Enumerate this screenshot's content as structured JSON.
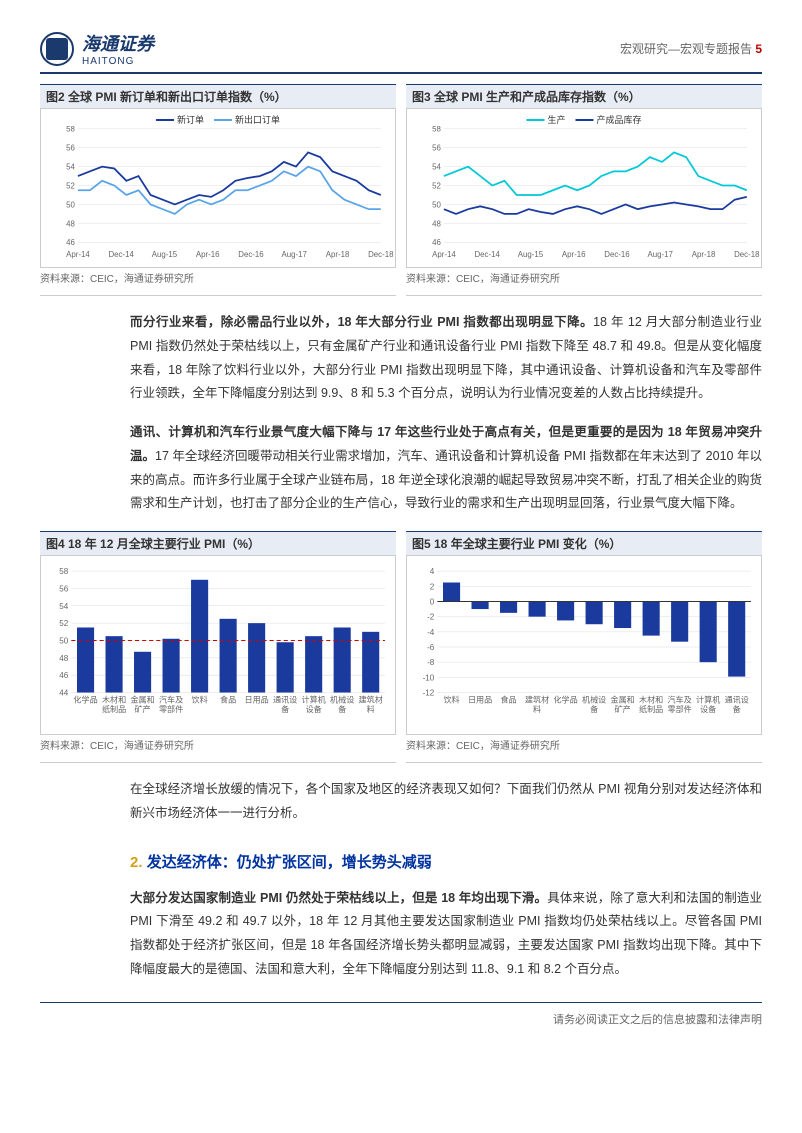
{
  "header": {
    "logo_cn": "海通证券",
    "logo_en": "HAITONG",
    "breadcrumb": "宏观研究—宏观专题报告",
    "page_number": "5"
  },
  "chart2": {
    "title": "图2  全球 PMI 新订单和新出口订单指数（%）",
    "type": "line",
    "series": [
      {
        "name": "新订单",
        "color": "#1a3a9e"
      },
      {
        "name": "新出口订单",
        "color": "#5aa5e8"
      }
    ],
    "x_labels": [
      "Apr-14",
      "Dec-14",
      "Aug-15",
      "Apr-16",
      "Dec-16",
      "Aug-17",
      "Apr-18",
      "Dec-18"
    ],
    "y_min": 46,
    "y_max": 58,
    "y_step": 2,
    "data_new_orders": [
      53,
      53.5,
      54,
      53.8,
      52.5,
      53,
      51,
      50.5,
      50,
      50.5,
      51,
      50.8,
      51.5,
      52.5,
      52.8,
      53,
      53.5,
      54.5,
      54,
      55.5,
      55,
      53.5,
      53,
      52.5,
      51.5,
      51
    ],
    "data_export_orders": [
      51.5,
      51.5,
      52.5,
      52,
      51,
      51.5,
      50,
      49.5,
      49,
      50,
      50.5,
      50,
      50.5,
      51.5,
      51.5,
      52,
      52.5,
      53.5,
      53,
      54,
      53.5,
      51.5,
      50.5,
      50,
      49.5,
      49.5
    ],
    "source": "资料来源：CEIC，海通证券研究所",
    "grid_color": "#ddd",
    "background_color": "#ffffff"
  },
  "chart3": {
    "title": "图3  全球 PMI 生产和产成品库存指数（%）",
    "type": "line",
    "series": [
      {
        "name": "生产",
        "color": "#00c8d7"
      },
      {
        "name": "产成品库存",
        "color": "#1a3a9e"
      }
    ],
    "x_labels": [
      "Apr-14",
      "Dec-14",
      "Aug-15",
      "Apr-16",
      "Dec-16",
      "Aug-17",
      "Apr-18",
      "Dec-18"
    ],
    "y_min": 46,
    "y_max": 58,
    "y_step": 2,
    "data_production": [
      53,
      53.5,
      54,
      53,
      52,
      52.5,
      51,
      51,
      51,
      51.5,
      52,
      51.5,
      52,
      53,
      53.5,
      53.5,
      54,
      55,
      54.5,
      55.5,
      55,
      53,
      52.5,
      52,
      52,
      51.5
    ],
    "data_inventory": [
      49.5,
      49,
      49.5,
      49.8,
      49.5,
      49,
      49,
      49.5,
      49.2,
      49,
      49.5,
      49.8,
      49.5,
      49,
      49.5,
      50,
      49.5,
      49.8,
      50,
      50.2,
      50,
      49.8,
      49.5,
      49.5,
      50.5,
      50.8
    ],
    "source": "资料来源：CEIC，海通证券研究所",
    "grid_color": "#ddd",
    "background_color": "#ffffff"
  },
  "para1": {
    "lead": "而分行业来看，除必需品行业以外，18 年大部分行业 PMI 指数都出现明显下降。",
    "body": "18 年 12 月大部分制造业行业 PMI 指数仍然处于荣枯线以上，只有金属矿产行业和通讯设备行业 PMI 指数下降至 48.7 和 49.8。但是从变化幅度来看，18 年除了饮料行业以外，大部分行业 PMI 指数出现明显下降，其中通讯设备、计算机设备和汽车及零部件行业领跌，全年下降幅度分别达到 9.9、8 和 5.3 个百分点，说明认为行业情况变差的人数占比持续提升。"
  },
  "para2": {
    "lead": "通讯、计算机和汽车行业景气度大幅下降与 17 年这些行业处于高点有关，但是更重要的是因为 18 年贸易冲突升温。",
    "body": "17 年全球经济回暖带动相关行业需求增加，汽车、通讯设备和计算机设备 PMI 指数都在年末达到了 2010 年以来的高点。而许多行业属于全球产业链布局，18 年逆全球化浪潮的崛起导致贸易冲突不断，打乱了相关企业的购货需求和生产计划，也打击了部分企业的生产信心，导致行业的需求和生产出现明显回落，行业景气度大幅下降。"
  },
  "chart4": {
    "title": "图4  18 年 12 月全球主要行业 PMI（%）",
    "type": "bar",
    "categories": [
      "化学品",
      "木材和纸制品",
      "金属和矿产",
      "汽车及零部件",
      "饮料",
      "食品",
      "日用品",
      "通讯设备",
      "计算机设备",
      "机械设备",
      "建筑材料"
    ],
    "values": [
      51.5,
      50.5,
      48.7,
      50.2,
      57,
      52.5,
      52,
      49.8,
      50.5,
      51.5,
      51
    ],
    "bar_color": "#1a3a9e",
    "reference_line": 50,
    "reference_color": "#c00",
    "y_min": 44,
    "y_max": 58,
    "y_step": 2,
    "source": "资料来源：CEIC，海通证券研究所",
    "grid_color": "#ddd",
    "background_color": "#ffffff"
  },
  "chart5": {
    "title": "图5  18 年全球主要行业 PMI 变化（%）",
    "type": "bar",
    "categories": [
      "饮料",
      "日用品",
      "食品",
      "建筑材料",
      "化学品",
      "机械设备",
      "金属和矿产",
      "木材和纸制品",
      "汽车及零部件",
      "计算机设备",
      "通讯设备"
    ],
    "values": [
      2.5,
      -1,
      -1.5,
      -2,
      -2.5,
      -3,
      -3.5,
      -4.5,
      -5.3,
      -8,
      -9.9
    ],
    "bar_color": "#1a3a9e",
    "y_min": -12,
    "y_max": 4,
    "y_step": 2,
    "source": "资料来源：CEIC，海通证券研究所",
    "grid_color": "#ddd",
    "background_color": "#ffffff"
  },
  "para3": {
    "body": "在全球经济增长放缓的情况下，各个国家及地区的经济表现又如何？下面我们仍然从 PMI 视角分别对发达经济体和新兴市场经济体一一进行分析。"
  },
  "section2": {
    "num": "2.",
    "title": "发达经济体：仍处扩张区间，增长势头减弱"
  },
  "para4": {
    "lead": "大部分发达国家制造业 PMI 仍然处于荣枯线以上，但是 18 年均出现下滑。",
    "body": "具体来说，除了意大利和法国的制造业 PMI 下滑至 49.2 和 49.7 以外，18 年 12 月其他主要发达国家制造业 PMI 指数均仍处荣枯线以上。尽管各国 PMI 指数都处于经济扩张区间，但是 18 年各国经济增长势头都明显减弱，主要发达国家 PMI 指数均出现下降。其中下降幅度最大的是德国、法国和意大利，全年下降幅度分别达到 11.8、9.1 和 8.2 个百分点。"
  },
  "footer": {
    "text": "请务必阅读正文之后的信息披露和法律声明"
  }
}
